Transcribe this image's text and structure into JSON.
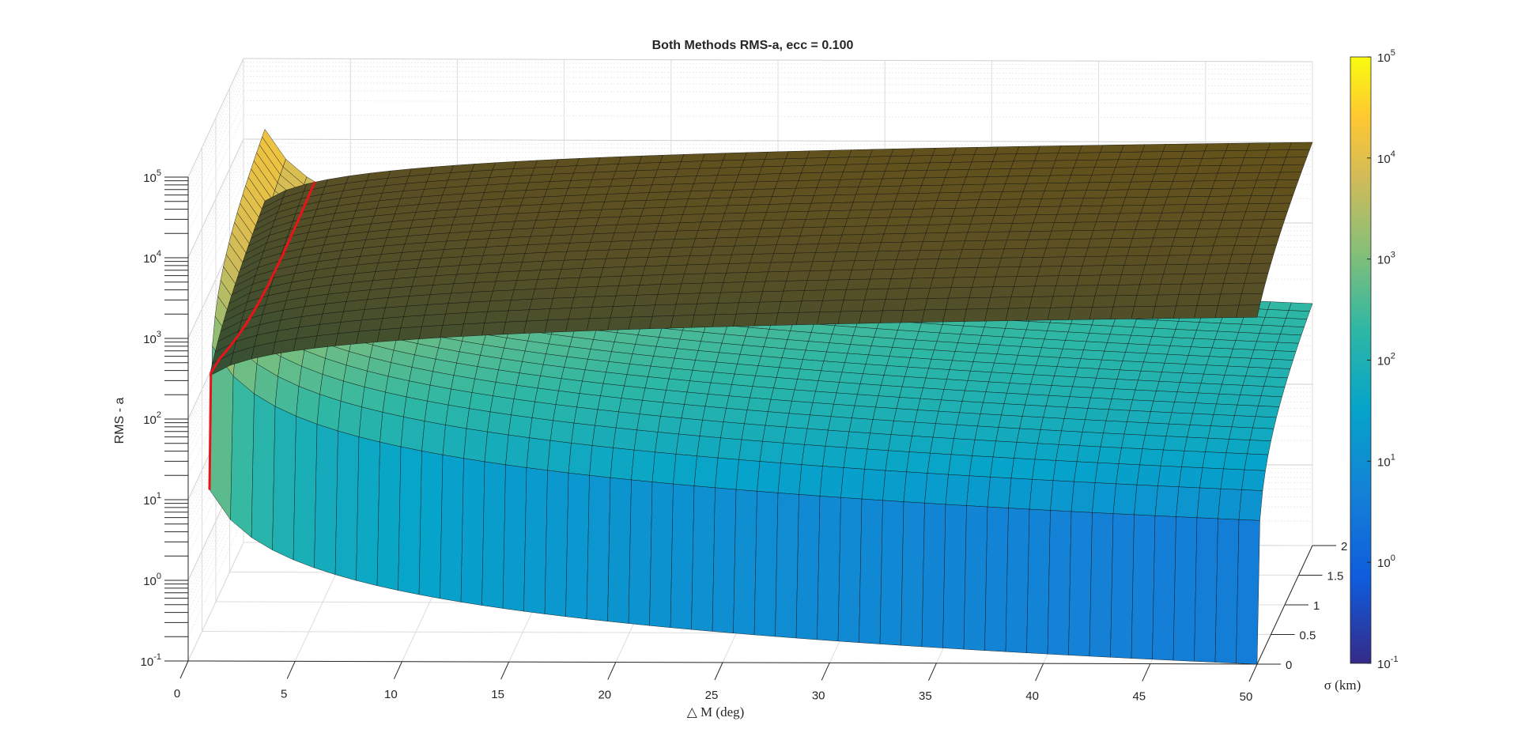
{
  "chart_data": {
    "type": "surface",
    "title": "Both Methods RMS-a, ecc = 0.100",
    "xlabel": "△ M (deg)",
    "ylabel": "σ (km)",
    "zlabel": "RMS - a",
    "x_ticks": [
      "0",
      "5",
      "10",
      "15",
      "20",
      "25",
      "30",
      "35",
      "40",
      "45",
      "50"
    ],
    "y_ticks": [
      "0",
      "0.5",
      "1",
      "1.5",
      "2"
    ],
    "z_ticks": [
      {
        "base": "10",
        "exp": "-1"
      },
      {
        "base": "10",
        "exp": "0"
      },
      {
        "base": "10",
        "exp": "1"
      },
      {
        "base": "10",
        "exp": "2"
      },
      {
        "base": "10",
        "exp": "3"
      },
      {
        "base": "10",
        "exp": "4"
      },
      {
        "base": "10",
        "exp": "5"
      }
    ],
    "colorbar_ticks": [
      {
        "base": "10",
        "exp": "-1"
      },
      {
        "base": "10",
        "exp": "0"
      },
      {
        "base": "10",
        "exp": "1"
      },
      {
        "base": "10",
        "exp": "2"
      },
      {
        "base": "10",
        "exp": "3"
      },
      {
        "base": "10",
        "exp": "4"
      },
      {
        "base": "10",
        "exp": "5"
      }
    ],
    "xlim": [
      0,
      50
    ],
    "ylim": [
      0,
      2
    ],
    "zlim": [
      0.1,
      100000
    ],
    "zscale": "log",
    "grid": true,
    "colormap": "parula",
    "colormap_stops": [
      "#352a87",
      "#0f5cdd",
      "#1481d6",
      "#06a4ca",
      "#2eb7a4",
      "#87bf77",
      "#d1bb59",
      "#fec832",
      "#f9fb0e"
    ],
    "intersection_color": "#e8141a",
    "surface_1": {
      "description_x_range": [
        1,
        50
      ],
      "rms_at_x50_sigma0": 0.1,
      "rms_at_x50_sigma2": 100,
      "rms_at_x1_sigma2": 5000
    },
    "surface_2": {
      "rms_at_x50_sigma0": 2000,
      "rms_at_x50_sigma2": 10000
    }
  }
}
